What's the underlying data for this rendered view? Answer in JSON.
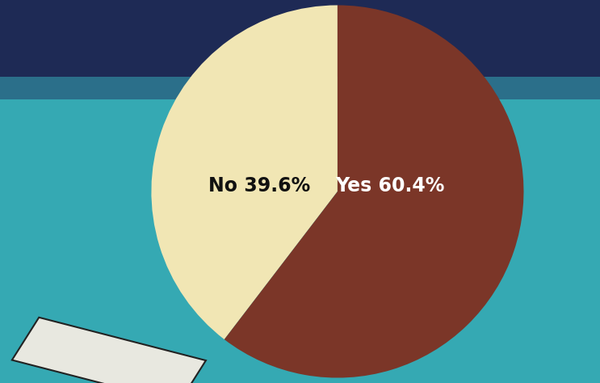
{
  "chart_data": {
    "type": "pie",
    "categories": [
      "No",
      "Yes"
    ],
    "values": [
      39.6,
      60.4
    ],
    "value_labels": [
      "39.6%",
      "60.4%"
    ],
    "colors": [
      "#f1e6b4",
      "#7b3628"
    ],
    "data_labels": true
  }
}
